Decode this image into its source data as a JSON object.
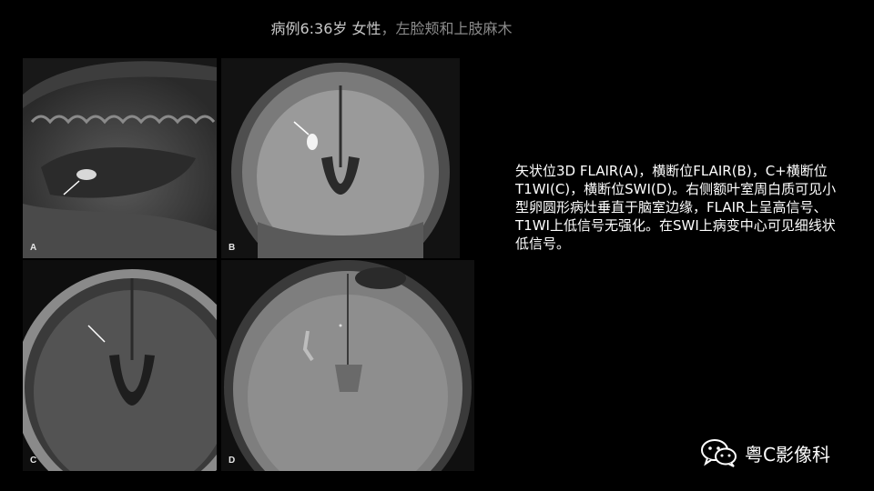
{
  "header": {
    "title_main": "病例6:36岁 女性",
    "title_sub": "，左脸颊和上肢麻木"
  },
  "panels": [
    {
      "letter": "A"
    },
    {
      "letter": "B"
    },
    {
      "letter": "C"
    },
    {
      "letter": "D"
    }
  ],
  "description": "矢状位3D FLAIR(A)，横断位FLAIR(B)，C+横断位T1WI(C)，横断位SWI(D)。右侧额叶室周白质可见小型卵圆形病灶垂直于脑室边缘，FLAIR上呈高信号、T1WI上低信号无强化。在SWI上病变中心可见细线状低信号。",
  "brand": {
    "name": "粤C影像科",
    "icon": "wechat-icon"
  }
}
